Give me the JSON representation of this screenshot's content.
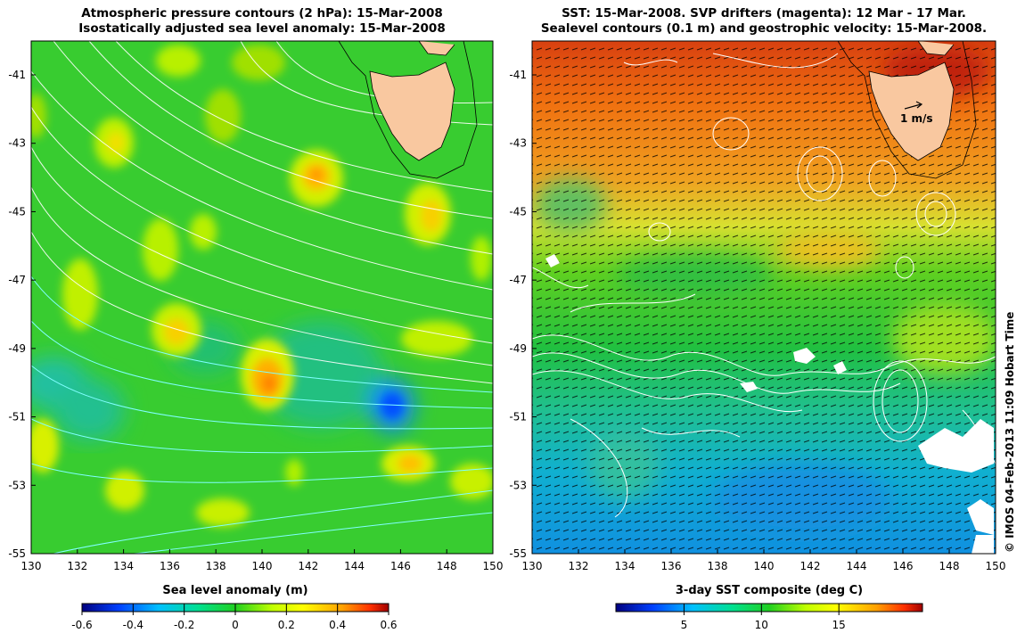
{
  "left_panel": {
    "title_line1": "Atmospheric pressure contours (2 hPa): 15-Mar-2008",
    "title_line2": "Isostatically adjusted sea level anomaly: 15-Mar-2008",
    "x_ticks": [
      "130",
      "132",
      "134",
      "136",
      "138",
      "140",
      "142",
      "144",
      "146",
      "148",
      "150"
    ],
    "y_ticks": [
      "-41",
      "-43",
      "-45",
      "-47",
      "-49",
      "-51",
      "-53",
      "-55"
    ],
    "colorbar_title": "Sea level anomaly (m)",
    "colorbar_ticks": [
      "-0.6",
      "-0.4",
      "-0.2",
      "0",
      "0.2",
      "0.4",
      "0.6"
    ]
  },
  "right_panel": {
    "title_line1": "SST: 15-Mar-2008. SVP drifters (magenta): 12 Mar - 17 Mar.",
    "title_line2": "Sealevel contours (0.1 m) and geostrophic velocity: 15-Mar-2008.",
    "x_ticks": [
      "130",
      "132",
      "134",
      "136",
      "138",
      "140",
      "142",
      "144",
      "146",
      "148",
      "150"
    ],
    "y_ticks": [
      "-41",
      "-43",
      "-45",
      "-47",
      "-49",
      "-51",
      "-53",
      "-55"
    ],
    "velocity_scale_label": "1 m/s",
    "colorbar_title": "3-day SST composite (deg C)",
    "colorbar_ticks": [
      "5",
      "10",
      "15"
    ]
  },
  "credit": "© IMOS 04-Feb-2013 11:09 Hobart Time",
  "colors": {
    "land": "#f9c8a0",
    "contour_white": "#ffffff",
    "contour_cyan": "#80ffff",
    "colormap": [
      "#00007f",
      "#0040ff",
      "#00c0ff",
      "#00e080",
      "#20d020",
      "#c0ff00",
      "#ffff00",
      "#ffb000",
      "#ff4000",
      "#a00000"
    ]
  }
}
